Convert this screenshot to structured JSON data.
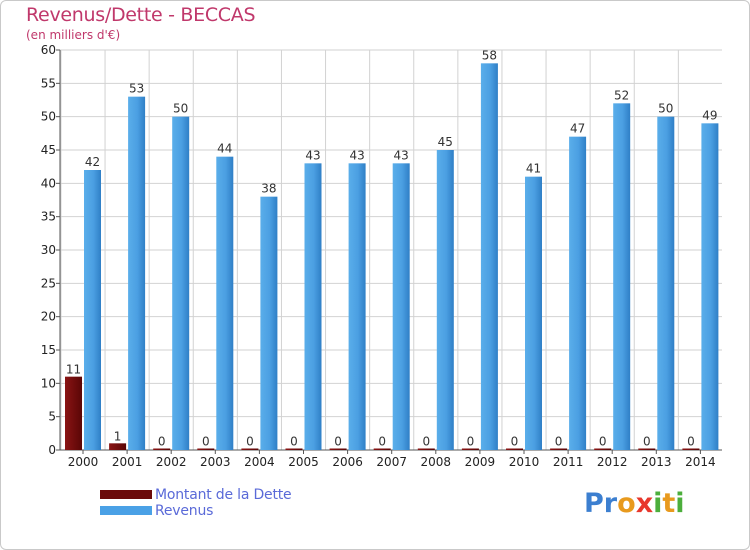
{
  "header": {
    "title": "Revenus/Dette - BECCAS",
    "subtitle": "(en milliers d'€)"
  },
  "logo": {
    "text": "Proxiti",
    "letters": [
      {
        "ch": "P",
        "color": "#3c7fd0"
      },
      {
        "ch": "r",
        "color": "#3c7fd0"
      },
      {
        "ch": "o",
        "color": "#e89a1e"
      },
      {
        "ch": "x",
        "color": "#e8372c"
      },
      {
        "ch": "i",
        "color": "#4cae3c"
      },
      {
        "ch": "t",
        "color": "#e89a1e"
      },
      {
        "ch": "i",
        "color": "#4cae3c"
      }
    ]
  },
  "chart_data": {
    "type": "bar",
    "categories": [
      "2000",
      "2001",
      "2002",
      "2003",
      "2004",
      "2005",
      "2006",
      "2007",
      "2008",
      "2009",
      "2010",
      "2011",
      "2012",
      "2013",
      "2014"
    ],
    "series": [
      {
        "name": "Montant de la Dette",
        "color": "#7a0c0c",
        "values": [
          11,
          1,
          0,
          0,
          0,
          0,
          0,
          0,
          0,
          0,
          0,
          0,
          0,
          0,
          0
        ]
      },
      {
        "name": "Revenus",
        "color": "#4aa1e6",
        "values": [
          42,
          53,
          50,
          44,
          38,
          43,
          43,
          43,
          45,
          58,
          41,
          47,
          52,
          50,
          49
        ]
      }
    ],
    "ylim": [
      0,
      60
    ],
    "yticks": [
      0,
      5,
      10,
      15,
      20,
      25,
      30,
      35,
      40,
      45,
      50,
      55,
      60
    ],
    "grid": true,
    "legend": "bottom-left"
  }
}
